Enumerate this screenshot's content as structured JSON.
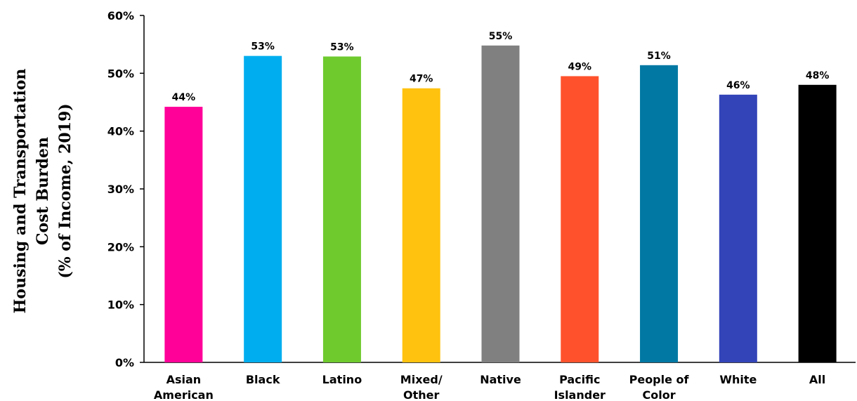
{
  "chart_data": {
    "type": "bar",
    "title": "",
    "xlabel": "",
    "ylabel_lines": [
      "Housing and Transportation",
      "Cost Burden",
      "(% of Income, 2019)"
    ],
    "ylim": [
      0,
      60
    ],
    "yticks": [
      0,
      10,
      20,
      30,
      40,
      50,
      60
    ],
    "ytick_labels": [
      "0%",
      "10%",
      "20%",
      "30%",
      "40%",
      "50%",
      "60%"
    ],
    "grid": false,
    "legend": "none",
    "categories": [
      [
        "Asian",
        "American"
      ],
      [
        "Black"
      ],
      [
        "Latino"
      ],
      [
        "Mixed/",
        "Other"
      ],
      [
        "Native"
      ],
      [
        "Pacific",
        "Islander"
      ],
      [
        "People of",
        "Color"
      ],
      [
        "White"
      ],
      [
        "All"
      ]
    ],
    "values": [
      44.2,
      53.0,
      52.9,
      47.4,
      54.8,
      49.5,
      51.4,
      46.3,
      48.0
    ],
    "value_labels": [
      "44%",
      "53%",
      "53%",
      "47%",
      "55%",
      "49%",
      "51%",
      "46%",
      "48%"
    ],
    "colors": [
      "#ff0099",
      "#00aeef",
      "#6fca2e",
      "#ffc20e",
      "#808080",
      "#ff522c",
      "#0078a3",
      "#3344b8",
      "#000000"
    ]
  }
}
